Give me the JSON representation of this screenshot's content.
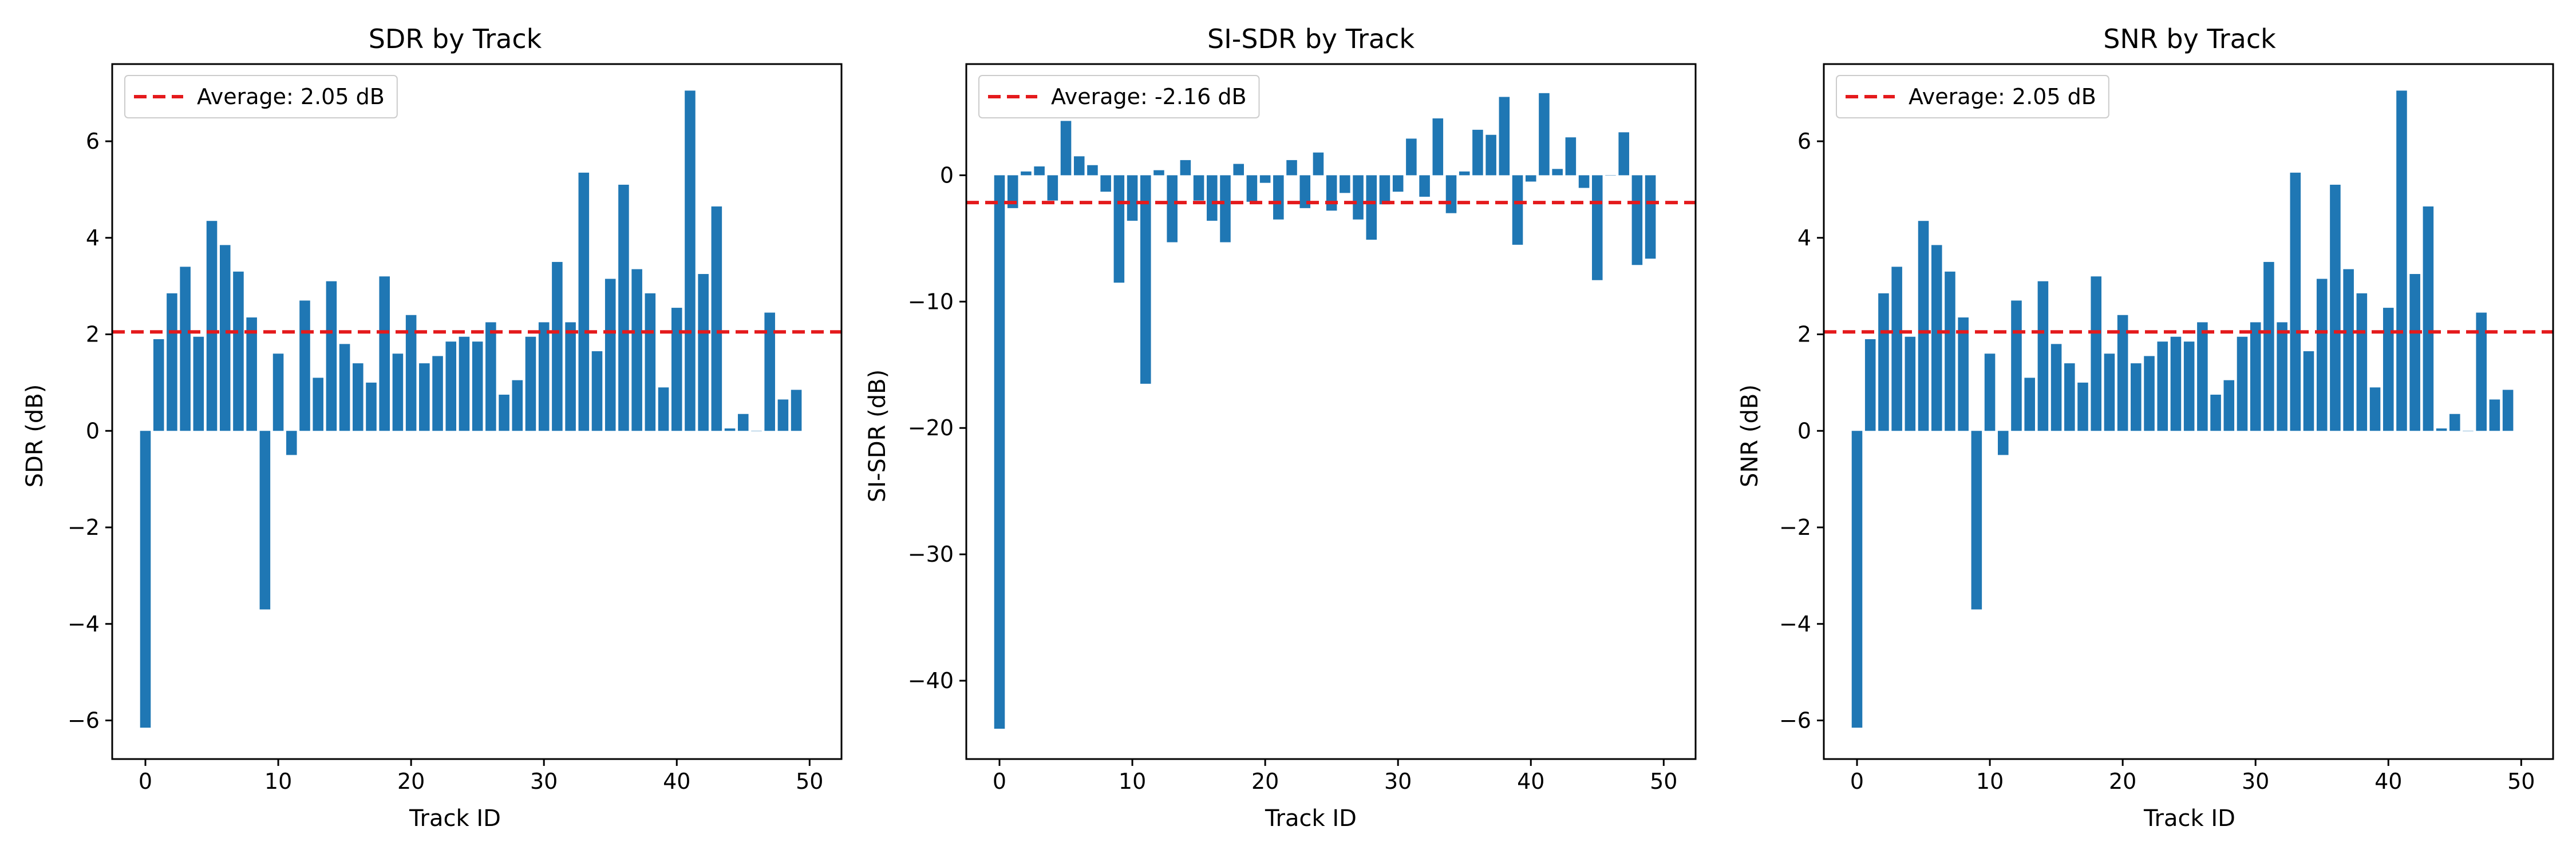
{
  "colors": {
    "bar": "#1f77b4",
    "average_line": "#e41a1c",
    "axis": "#000000",
    "background": "#ffffff"
  },
  "chart_data": [
    {
      "type": "bar",
      "title": "SDR by Track",
      "xlabel": "Track ID",
      "ylabel": "SDR (dB)",
      "xlim": [
        -2.5,
        52.4
      ],
      "ylim": [
        -6.8,
        7.6
      ],
      "xticks": [
        0,
        10,
        20,
        30,
        40,
        50
      ],
      "yticks": [
        -6,
        -4,
        -2,
        0,
        2,
        4,
        6
      ],
      "legend_position": "top-left",
      "average": {
        "label": "Average: 2.05 dB",
        "value": 2.05,
        "style": "dashed"
      },
      "x": [
        0,
        1,
        2,
        3,
        4,
        5,
        6,
        7,
        8,
        9,
        10,
        11,
        12,
        13,
        14,
        15,
        16,
        17,
        18,
        19,
        20,
        21,
        22,
        23,
        24,
        25,
        26,
        27,
        28,
        29,
        30,
        31,
        32,
        33,
        34,
        35,
        36,
        37,
        38,
        39,
        40,
        41,
        42,
        43,
        44,
        45,
        46,
        47,
        48,
        49
      ],
      "values": [
        -6.15,
        1.9,
        2.85,
        3.4,
        1.95,
        4.35,
        3.85,
        3.3,
        2.35,
        -3.7,
        1.6,
        -0.5,
        2.7,
        1.1,
        3.1,
        1.8,
        1.4,
        1.0,
        3.2,
        1.6,
        2.4,
        1.4,
        1.55,
        1.85,
        1.95,
        1.85,
        2.25,
        0.75,
        1.05,
        1.95,
        2.25,
        3.5,
        2.25,
        5.35,
        1.65,
        3.15,
        5.1,
        3.35,
        2.85,
        0.9,
        2.55,
        7.05,
        3.25,
        4.65,
        0.05,
        0.35,
        0.0,
        2.45,
        0.65,
        0.85
      ]
    },
    {
      "type": "bar",
      "title": "SI-SDR by Track",
      "xlabel": "Track ID",
      "ylabel": "SI-SDR (dB)",
      "xlim": [
        -2.5,
        52.4
      ],
      "ylim": [
        -46.2,
        8.8
      ],
      "xticks": [
        0,
        10,
        20,
        30,
        40,
        50
      ],
      "yticks": [
        -40,
        -30,
        -20,
        -10,
        0
      ],
      "legend_position": "top-left",
      "average": {
        "label": "Average: -2.16 dB",
        "value": -2.16,
        "style": "dashed"
      },
      "x": [
        0,
        1,
        2,
        3,
        4,
        5,
        6,
        7,
        8,
        9,
        10,
        11,
        12,
        13,
        14,
        15,
        16,
        17,
        18,
        19,
        20,
        21,
        22,
        23,
        24,
        25,
        26,
        27,
        28,
        29,
        30,
        31,
        32,
        33,
        34,
        35,
        36,
        37,
        38,
        39,
        40,
        41,
        42,
        43,
        44,
        45,
        46,
        47,
        48,
        49
      ],
      "values": [
        -43.8,
        -2.6,
        0.3,
        0.7,
        -2.0,
        4.3,
        1.5,
        0.8,
        -1.3,
        -8.5,
        -3.6,
        -16.5,
        0.4,
        -5.3,
        1.2,
        -2.0,
        -3.6,
        -5.3,
        0.9,
        -2.1,
        -0.6,
        -3.5,
        1.2,
        -2.6,
        1.8,
        -2.8,
        -1.4,
        -3.5,
        -5.1,
        -2.3,
        -1.3,
        2.9,
        -1.7,
        4.5,
        -3.0,
        0.3,
        3.6,
        3.2,
        6.2,
        -5.5,
        -0.5,
        6.5,
        0.5,
        3.0,
        -1.0,
        -8.3,
        0.0,
        3.4,
        -7.1,
        -6.6
      ]
    },
    {
      "type": "bar",
      "title": "SNR by Track",
      "xlabel": "Track ID",
      "ylabel": "SNR (dB)",
      "xlim": [
        -2.5,
        52.4
      ],
      "ylim": [
        -6.8,
        7.6
      ],
      "xticks": [
        0,
        10,
        20,
        30,
        40,
        50
      ],
      "yticks": [
        -6,
        -4,
        -2,
        0,
        2,
        4,
        6
      ],
      "legend_position": "top-left",
      "average": {
        "label": "Average: 2.05 dB",
        "value": 2.05,
        "style": "dashed"
      },
      "x": [
        0,
        1,
        2,
        3,
        4,
        5,
        6,
        7,
        8,
        9,
        10,
        11,
        12,
        13,
        14,
        15,
        16,
        17,
        18,
        19,
        20,
        21,
        22,
        23,
        24,
        25,
        26,
        27,
        28,
        29,
        30,
        31,
        32,
        33,
        34,
        35,
        36,
        37,
        38,
        39,
        40,
        41,
        42,
        43,
        44,
        45,
        46,
        47,
        48,
        49
      ],
      "values": [
        -6.15,
        1.9,
        2.85,
        3.4,
        1.95,
        4.35,
        3.85,
        3.3,
        2.35,
        -3.7,
        1.6,
        -0.5,
        2.7,
        1.1,
        3.1,
        1.8,
        1.4,
        1.0,
        3.2,
        1.6,
        2.4,
        1.4,
        1.55,
        1.85,
        1.95,
        1.85,
        2.25,
        0.75,
        1.05,
        1.95,
        2.25,
        3.5,
        2.25,
        5.35,
        1.65,
        3.15,
        5.1,
        3.35,
        2.85,
        0.9,
        2.55,
        7.05,
        3.25,
        4.65,
        0.05,
        0.35,
        0.0,
        2.45,
        0.65,
        0.85
      ]
    }
  ]
}
